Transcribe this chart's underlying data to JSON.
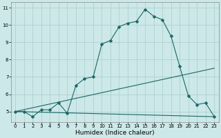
{
  "title": "",
  "xlabel": "Humidex (Indice chaleur)",
  "background_color": "#cce8e8",
  "grid_color": "#aacccc",
  "line_color": "#1a6666",
  "line1_x": [
    0,
    1,
    2,
    3,
    4,
    5,
    6,
    7,
    8,
    9,
    10,
    11,
    12,
    13,
    14,
    15,
    16,
    17,
    18,
    19,
    20,
    21,
    22,
    23
  ],
  "line1_y": [
    5.0,
    5.0,
    4.7,
    5.1,
    5.1,
    5.5,
    4.9,
    6.5,
    6.9,
    7.0,
    8.9,
    9.1,
    9.9,
    10.1,
    10.2,
    10.9,
    10.5,
    10.3,
    9.35,
    7.6,
    5.9,
    5.4,
    5.5,
    4.7
  ],
  "line2_x": [
    0,
    23
  ],
  "line2_y": [
    5.0,
    7.5
  ],
  "line3_x": [
    0,
    23
  ],
  "line3_y": [
    5.0,
    4.7
  ],
  "ylim": [
    4.4,
    11.3
  ],
  "xlim": [
    -0.5,
    23.5
  ],
  "yticks": [
    5,
    6,
    7,
    8,
    9,
    10,
    11
  ],
  "xticks": [
    0,
    1,
    2,
    3,
    4,
    5,
    6,
    7,
    8,
    9,
    10,
    11,
    12,
    13,
    14,
    15,
    16,
    17,
    18,
    19,
    20,
    21,
    22,
    23
  ],
  "marker_size": 2.5,
  "linewidth": 0.8,
  "tick_fontsize": 5.0,
  "xlabel_fontsize": 6.5,
  "spine_color": "#888888"
}
